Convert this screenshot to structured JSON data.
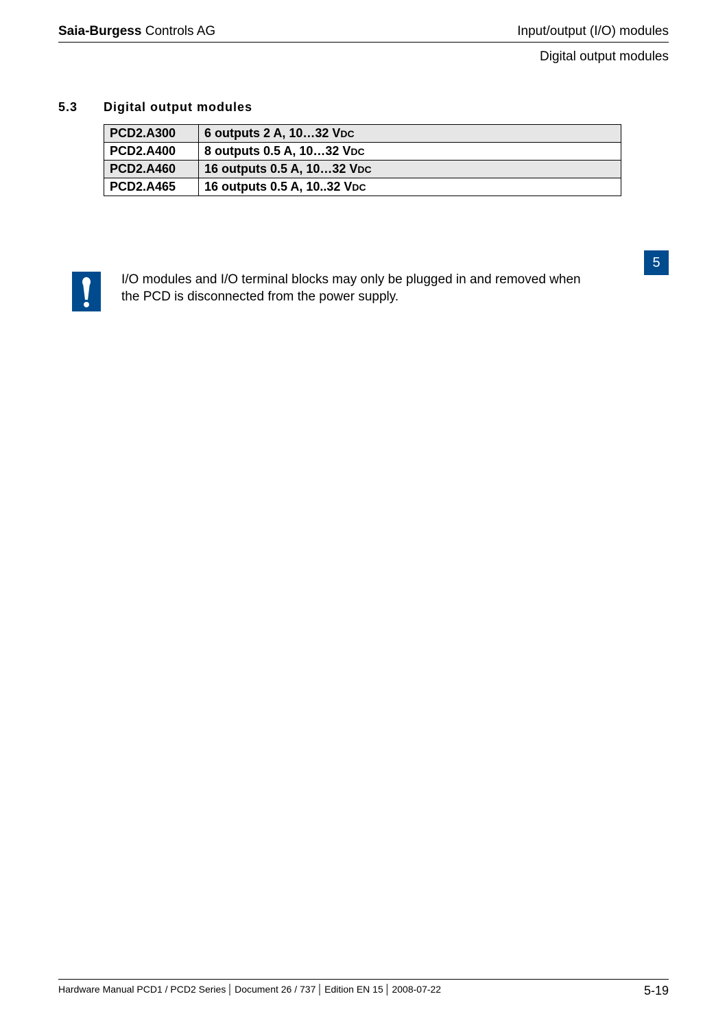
{
  "header": {
    "company_bold": "Saia-Burgess",
    "company_rest": " Controls AG",
    "right": "Input/output (I/O) modules",
    "sub": "Digital output modules"
  },
  "section": {
    "num": "5.3",
    "title": "Digital output modules"
  },
  "table": {
    "rows": [
      {
        "model": "PCD2.A300",
        "desc_pre": "6 outputs 2 A, 10…32 V",
        "desc_dc": "DC",
        "shaded": true
      },
      {
        "model": "PCD2.A400",
        "desc_pre": "8 outputs 0.5 A, 10…32 V",
        "desc_dc": "DC",
        "shaded": false
      },
      {
        "model": "PCD2.A460",
        "desc_pre": "16 outputs 0.5 A, 10…32 V",
        "desc_dc": "DC",
        "shaded": true
      },
      {
        "model": "PCD2.A465",
        "desc_pre": "16 outputs 0.5 A, 10..32 V",
        "desc_dc": "DC",
        "shaded": false
      }
    ]
  },
  "warning": {
    "text": "I/O modules and I/O terminal blocks may only be plugged in and removed when the PCD is disconnected from the power supply."
  },
  "chapter_tab": "5",
  "footer": {
    "manual": "Hardware Manual PCD1 / PCD2 Series",
    "doc": "Document 26 / 737",
    "edition": "Edition EN 15",
    "date": "2008-07-22",
    "page": "5-19"
  },
  "colors": {
    "brand_blue": "#004b8d",
    "shade": "#e6e6e6"
  }
}
